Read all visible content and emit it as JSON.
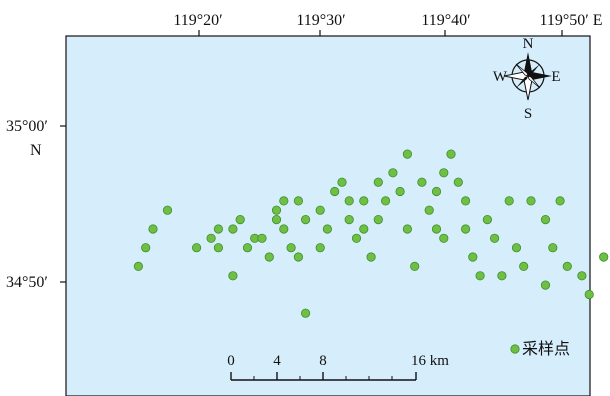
{
  "map": {
    "background_color": "#d6eefb",
    "frame_color": "#111111",
    "x_axis": {
      "labels": [
        "119°20′",
        "119°30′",
        "119°40′",
        "119°50′ E"
      ]
    },
    "y_axis": {
      "labels": [
        "35°00′",
        "N",
        "34°50′"
      ]
    }
  },
  "compass": {
    "north": "N",
    "south": "S",
    "east": "E",
    "west": "W",
    "icon": "compass-rose-icon"
  },
  "scale_bar": {
    "labels": [
      "0",
      "4",
      "8",
      "16 km"
    ],
    "values_km": [
      0,
      4,
      8,
      16
    ]
  },
  "legend": {
    "label": "采样点",
    "marker_color": "#6fbf44",
    "marker_stroke": "#3d8f2d"
  },
  "sample_points": {
    "marker_color": "#6fbf44",
    "marker_stroke": "#3d8f2d",
    "points": [
      [
        119.25,
        34.85
      ],
      [
        119.26,
        34.87
      ],
      [
        119.27,
        34.89
      ],
      [
        119.29,
        34.91
      ],
      [
        119.33,
        34.87
      ],
      [
        119.35,
        34.88
      ],
      [
        119.36,
        34.89
      ],
      [
        119.36,
        34.87
      ],
      [
        119.38,
        34.89
      ],
      [
        119.38,
        34.84
      ],
      [
        119.39,
        34.9
      ],
      [
        119.4,
        34.87
      ],
      [
        119.41,
        34.88
      ],
      [
        119.42,
        34.88
      ],
      [
        119.43,
        34.86
      ],
      [
        119.44,
        34.9
      ],
      [
        119.44,
        34.91
      ],
      [
        119.45,
        34.92
      ],
      [
        119.45,
        34.89
      ],
      [
        119.46,
        34.87
      ],
      [
        119.47,
        34.86
      ],
      [
        119.47,
        34.92
      ],
      [
        119.48,
        34.9
      ],
      [
        119.5,
        34.91
      ],
      [
        119.5,
        34.87
      ],
      [
        119.51,
        34.89
      ],
      [
        119.52,
        34.93
      ],
      [
        119.53,
        34.94
      ],
      [
        119.54,
        34.92
      ],
      [
        119.54,
        34.9
      ],
      [
        119.55,
        34.88
      ],
      [
        119.56,
        34.92
      ],
      [
        119.56,
        34.89
      ],
      [
        119.57,
        34.86
      ],
      [
        119.58,
        34.94
      ],
      [
        119.58,
        34.9
      ],
      [
        119.59,
        34.92
      ],
      [
        119.6,
        34.95
      ],
      [
        119.61,
        34.93
      ],
      [
        119.62,
        34.89
      ],
      [
        119.62,
        34.97
      ],
      [
        119.63,
        34.85
      ],
      [
        119.64,
        34.94
      ],
      [
        119.65,
        34.91
      ],
      [
        119.66,
        34.93
      ],
      [
        119.66,
        34.89
      ],
      [
        119.67,
        34.88
      ],
      [
        119.67,
        34.95
      ],
      [
        119.68,
        34.97
      ],
      [
        119.69,
        34.94
      ],
      [
        119.7,
        34.92
      ],
      [
        119.7,
        34.89
      ],
      [
        119.71,
        34.86
      ],
      [
        119.72,
        34.84
      ],
      [
        119.73,
        34.9
      ],
      [
        119.74,
        34.88
      ],
      [
        119.75,
        34.84
      ],
      [
        119.76,
        34.92
      ],
      [
        119.77,
        34.87
      ],
      [
        119.78,
        34.85
      ],
      [
        119.79,
        34.92
      ],
      [
        119.81,
        34.9
      ],
      [
        119.81,
        34.83
      ],
      [
        119.82,
        34.87
      ],
      [
        119.83,
        34.92
      ],
      [
        119.84,
        34.85
      ],
      [
        119.86,
        34.84
      ],
      [
        119.87,
        34.82
      ],
      [
        119.89,
        34.86
      ],
      [
        119.48,
        34.8
      ]
    ]
  }
}
